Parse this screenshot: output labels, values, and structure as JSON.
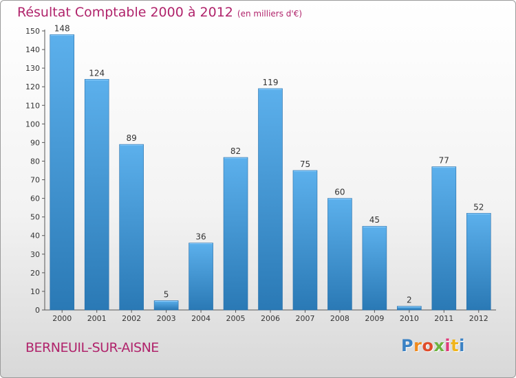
{
  "chart_data": {
    "type": "bar",
    "title": "Résultat Comptable 2000 à 2012",
    "subtitle": "(en milliers d'€)",
    "categories": [
      "2000",
      "2001",
      "2002",
      "2003",
      "2004",
      "2005",
      "2006",
      "2007",
      "2008",
      "2009",
      "2010",
      "2011",
      "2012"
    ],
    "values": [
      148,
      124,
      89,
      5,
      36,
      82,
      119,
      75,
      60,
      45,
      2,
      77,
      52
    ],
    "ylim": [
      0,
      150
    ],
    "yticks": [
      0,
      10,
      20,
      30,
      40,
      50,
      60,
      70,
      80,
      90,
      100,
      110,
      120,
      130,
      140,
      150
    ],
    "xlabel": "",
    "ylabel": "",
    "grid": false,
    "bar_color_top": "#5cb0ec",
    "bar_color_bottom": "#2a79b5",
    "label_color": "#333333"
  },
  "footer": {
    "city": "BERNEUIL-SUR-AISNE",
    "logo": [
      "P",
      "r",
      "o",
      "x",
      "i",
      "t",
      "i"
    ],
    "logo_colors": [
      "#3b82c4",
      "#f08a1c",
      "#e04c2a",
      "#6cb33f",
      "#e03b7a",
      "#f0b51c",
      "#3b82c4"
    ]
  },
  "colors": {
    "title": "#b0236b"
  }
}
